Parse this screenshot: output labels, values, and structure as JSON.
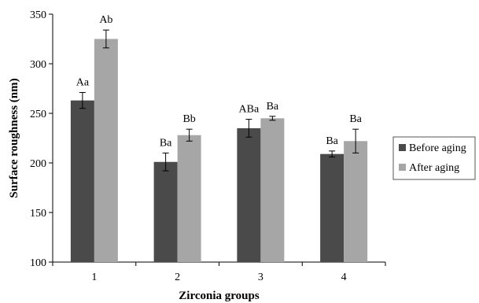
{
  "chart_data": {
    "type": "bar",
    "title": "",
    "xlabel": "Zirconia groups",
    "ylabel": "Surface roughness (nm)",
    "categories": [
      "1",
      "2",
      "3",
      "4"
    ],
    "ylim": [
      100,
      350
    ],
    "yticks": [
      100,
      150,
      200,
      250,
      300,
      350
    ],
    "grid": false,
    "legend_position": "right",
    "series": [
      {
        "name": "Before aging",
        "color": "#4a4a4a",
        "values": [
          263,
          201,
          235,
          209
        ],
        "errors": [
          8,
          9,
          9,
          3
        ],
        "labels": [
          "Aa",
          "Ba",
          "ABa",
          "Ba"
        ]
      },
      {
        "name": "After aging",
        "color": "#a6a6a6",
        "values": [
          325,
          228,
          245,
          222
        ],
        "errors": [
          9,
          6,
          2,
          12
        ],
        "labels": [
          "Ab",
          "Bb",
          "Ba",
          "Ba"
        ]
      }
    ]
  }
}
